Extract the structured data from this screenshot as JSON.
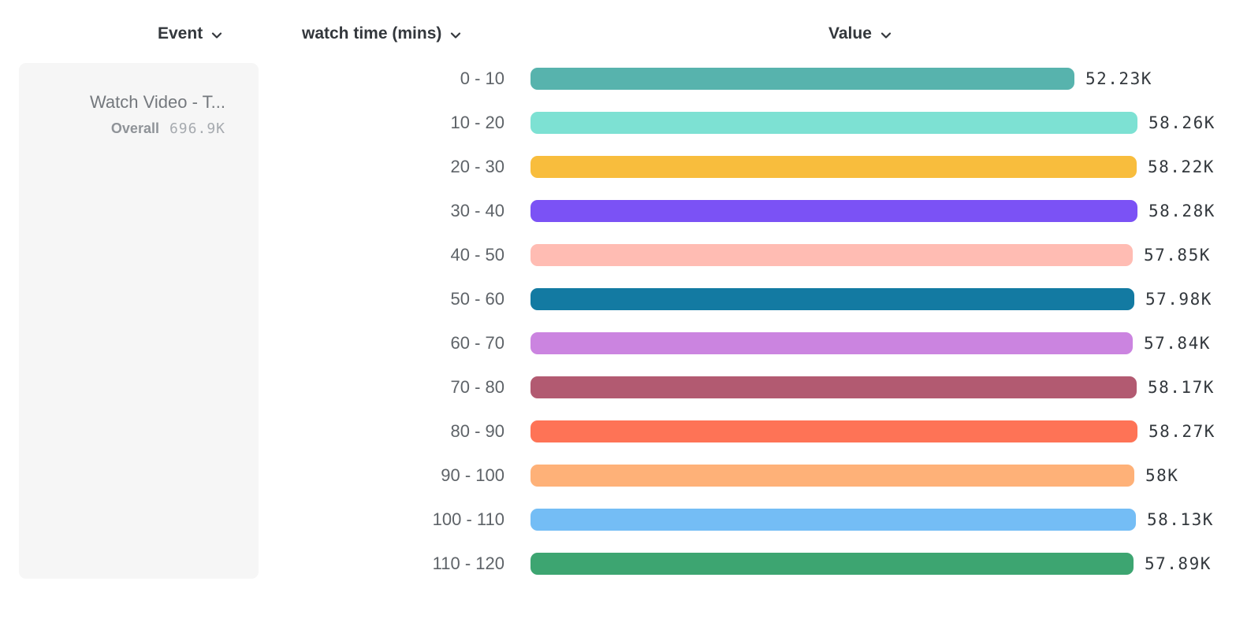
{
  "header": {
    "columns": [
      {
        "id": "event",
        "label": "Event",
        "icon": "chevron-down-icon"
      },
      {
        "id": "breakdown",
        "label": "watch time (mins)",
        "icon": "chevron-down-icon"
      },
      {
        "id": "value",
        "label": "Value",
        "icon": "chevron-down-icon"
      }
    ]
  },
  "event_card": {
    "name": "Watch Video - T...",
    "overall_label": "Overall",
    "overall_value": "696.9K"
  },
  "chart_data": {
    "type": "bar",
    "orientation": "horizontal",
    "title": "",
    "xlabel": "Value",
    "ylabel": "watch time (mins)",
    "xlim": [
      0,
      58280
    ],
    "grid": false,
    "categories": [
      "0 - 10",
      "10 - 20",
      "20 - 30",
      "30 - 40",
      "40 - 50",
      "50 - 60",
      "60 - 70",
      "70 - 80",
      "80 - 90",
      "90 - 100",
      "100 - 110",
      "110 - 120"
    ],
    "values": [
      52230,
      58260,
      58220,
      58280,
      57850,
      57980,
      57840,
      58170,
      58270,
      58000,
      58130,
      57890
    ],
    "value_labels": [
      "52.23K",
      "58.26K",
      "58.22K",
      "58.28K",
      "57.85K",
      "57.98K",
      "57.84K",
      "58.17K",
      "58.27K",
      "58K",
      "58.13K",
      "57.89K"
    ],
    "colors": [
      "#57b3ad",
      "#7de1d3",
      "#f8bd3d",
      "#7b52f5",
      "#ffbcb3",
      "#137aa2",
      "#cb84e0",
      "#b25a71",
      "#fe7356",
      "#feb178",
      "#74bdf5",
      "#3da571"
    ]
  }
}
